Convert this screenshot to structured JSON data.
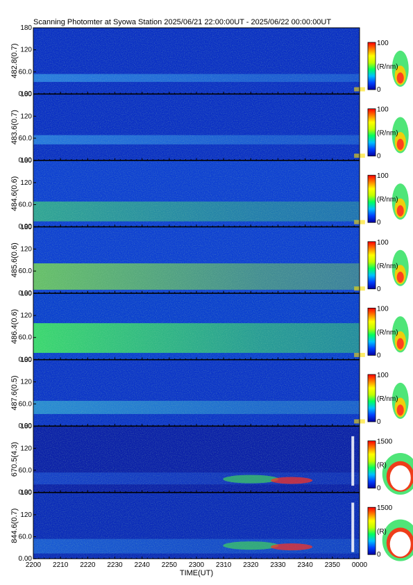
{
  "title": "Scanning Photomter at Syowa Station  2025/06/21 22:00:00UT - 2025/06/22 00:00:00UT",
  "x_axis_label": "TIME(UT)",
  "x_ticks": [
    "2200",
    "2210",
    "2220",
    "2230",
    "2240",
    "2250",
    "2300",
    "2310",
    "2320",
    "2330",
    "2340",
    "2350",
    "0000"
  ],
  "chart_data": {
    "type": "heatmap",
    "title": "Scanning Photomter at Syowa Station  2025/06/21 22:00:00UT - 2025/06/22 00:00:00UT",
    "xlabel": "TIME(UT)",
    "x_range": [
      "2200",
      "0000"
    ],
    "y_range": [
      0,
      180
    ],
    "y_ticks": [
      "0.00",
      "60.0",
      "120",
      "180"
    ],
    "colormap": [
      "#0000a0",
      "#0040ff",
      "#00c0ff",
      "#00ff60",
      "#c0ff00",
      "#ffff00",
      "#ff8000",
      "#ff0000",
      "#ffffff"
    ],
    "panels": [
      {
        "ylabel": "482.8(0.7)",
        "colorbar": {
          "unit": "(R/nm)",
          "min": "0",
          "max": "100"
        }
      },
      {
        "ylabel": "483.6(0.7)",
        "colorbar": {
          "unit": "(R/nm)",
          "min": "0",
          "max": "100"
        }
      },
      {
        "ylabel": "484.6(0.6)",
        "colorbar": {
          "unit": "(R/nm)",
          "min": "0",
          "max": "100"
        }
      },
      {
        "ylabel": "485.6(0.6)",
        "colorbar": {
          "unit": "(R/nm)",
          "min": "0",
          "max": "100"
        }
      },
      {
        "ylabel": "486.4(0.6)",
        "colorbar": {
          "unit": "(R/nm)",
          "min": "0",
          "max": "100"
        }
      },
      {
        "ylabel": "487.6(0.5)",
        "colorbar": {
          "unit": "(R/nm)",
          "min": "0",
          "max": "100"
        }
      },
      {
        "ylabel": "670.5(4.3)",
        "colorbar": {
          "unit": "(R)",
          "min": "0",
          "max": "1500"
        }
      },
      {
        "ylabel": "844.6(0.7)",
        "colorbar": {
          "unit": "(R)",
          "min": "0",
          "max": "1500"
        }
      }
    ]
  }
}
